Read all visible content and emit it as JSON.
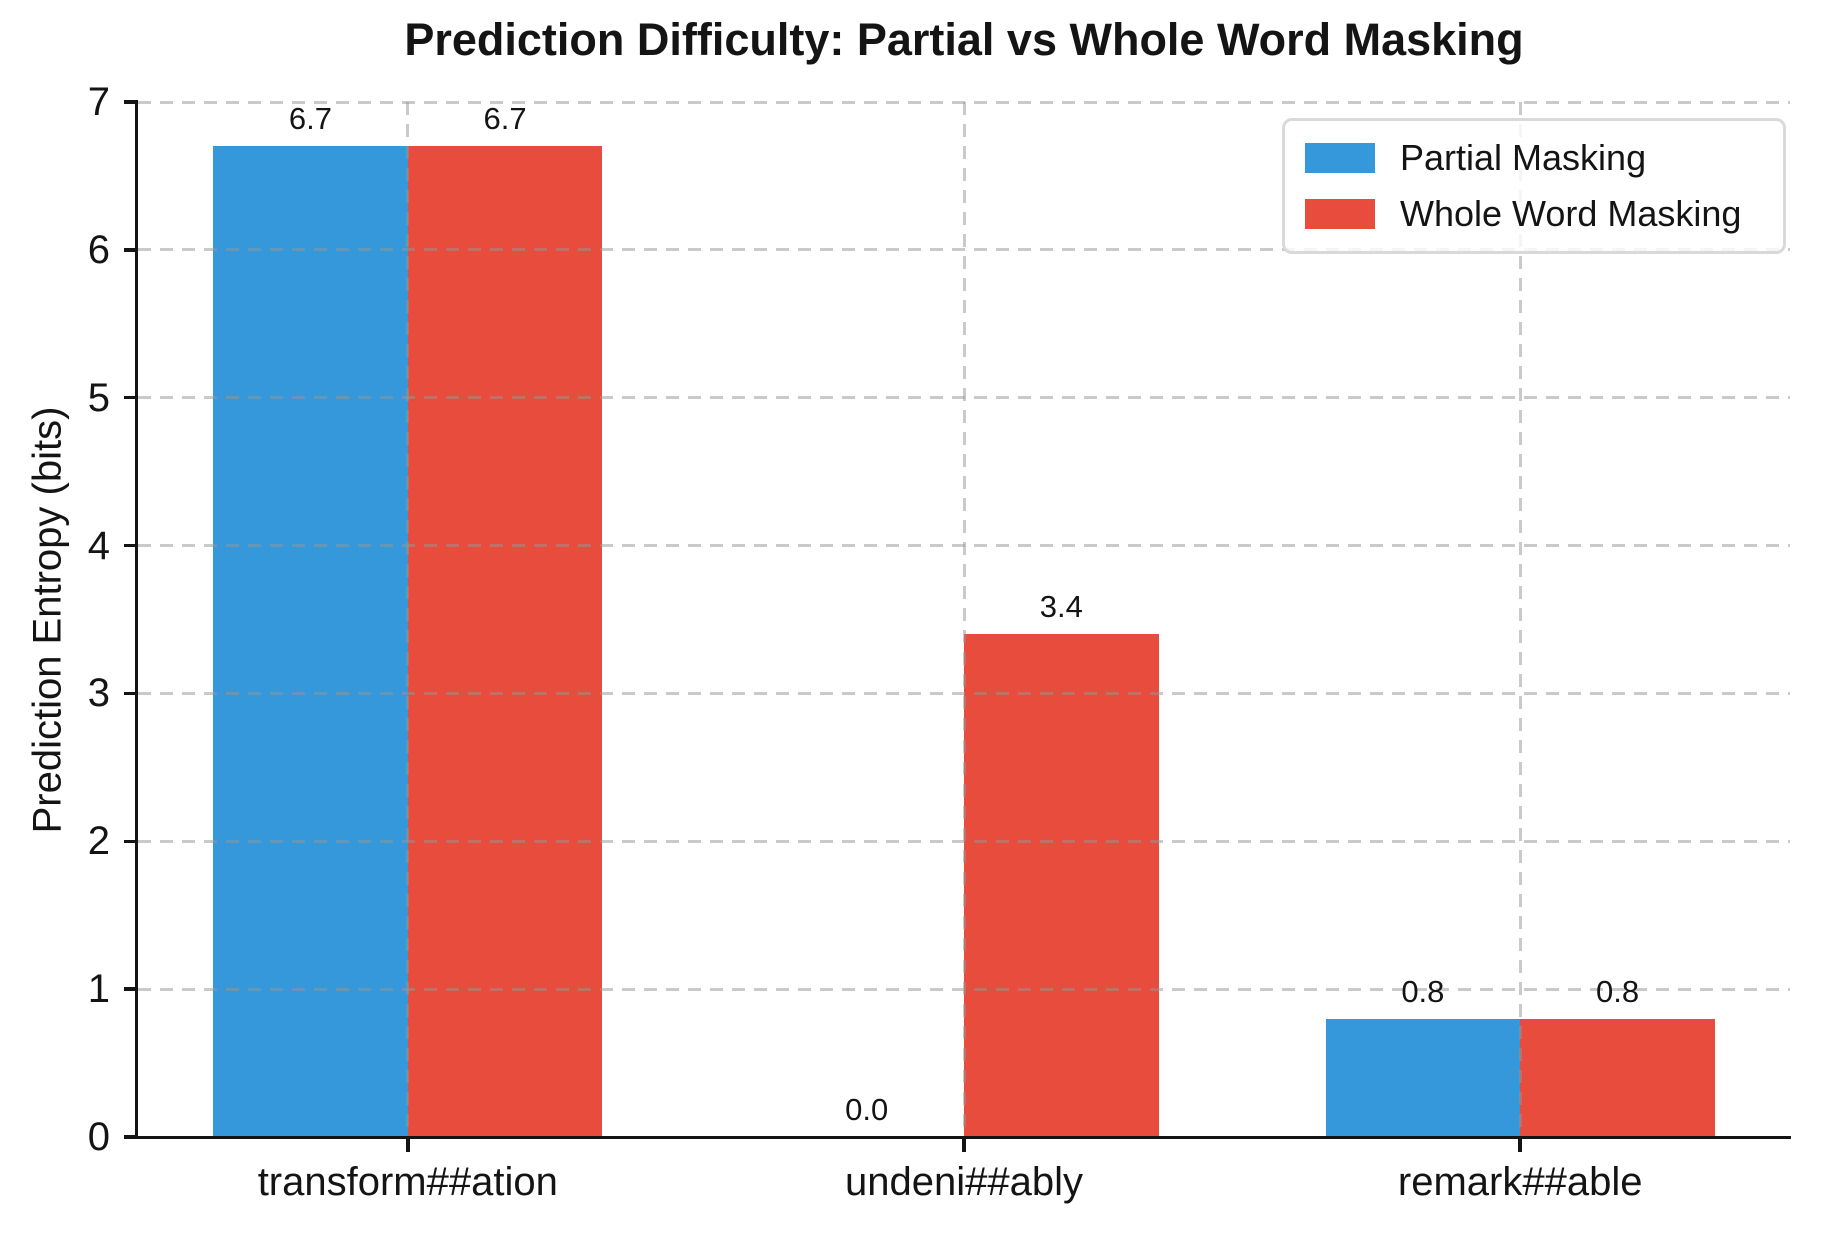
{
  "chart_data": {
    "type": "bar",
    "title": "Prediction Difficulty: Partial vs Whole Word Masking",
    "xlabel": "",
    "ylabel": "Prediction Entropy (bits)",
    "categories": [
      "transform##ation",
      "undeni##ably",
      "remark##able"
    ],
    "series": [
      {
        "name": "Partial Masking",
        "color": "#3498db",
        "values": [
          6.7,
          0.0,
          0.8
        ],
        "value_labels": [
          "6.7",
          "0.0",
          "0.8"
        ]
      },
      {
        "name": "Whole Word Masking",
        "color": "#e74c3c",
        "values": [
          6.7,
          3.4,
          0.8
        ],
        "value_labels": [
          "6.7",
          "3.4",
          "0.8"
        ]
      }
    ],
    "ylim": [
      0,
      7
    ],
    "yticks": [
      "0",
      "1",
      "2",
      "3",
      "4",
      "5",
      "6",
      "7"
    ],
    "bar_width_fraction": 0.35,
    "grid": {
      "style": "dashed",
      "horizontal": true,
      "vertical": true,
      "color": "#d9d9d9",
      "drawn_above_bars": true
    },
    "legend": {
      "position": "upper right",
      "entries": [
        "Partial Masking",
        "Whole Word Masking"
      ]
    },
    "colors": {
      "partial_masking": "#3498db",
      "whole_word_masking": "#e74c3c",
      "axis": "#141414",
      "background": "#ffffff"
    }
  }
}
